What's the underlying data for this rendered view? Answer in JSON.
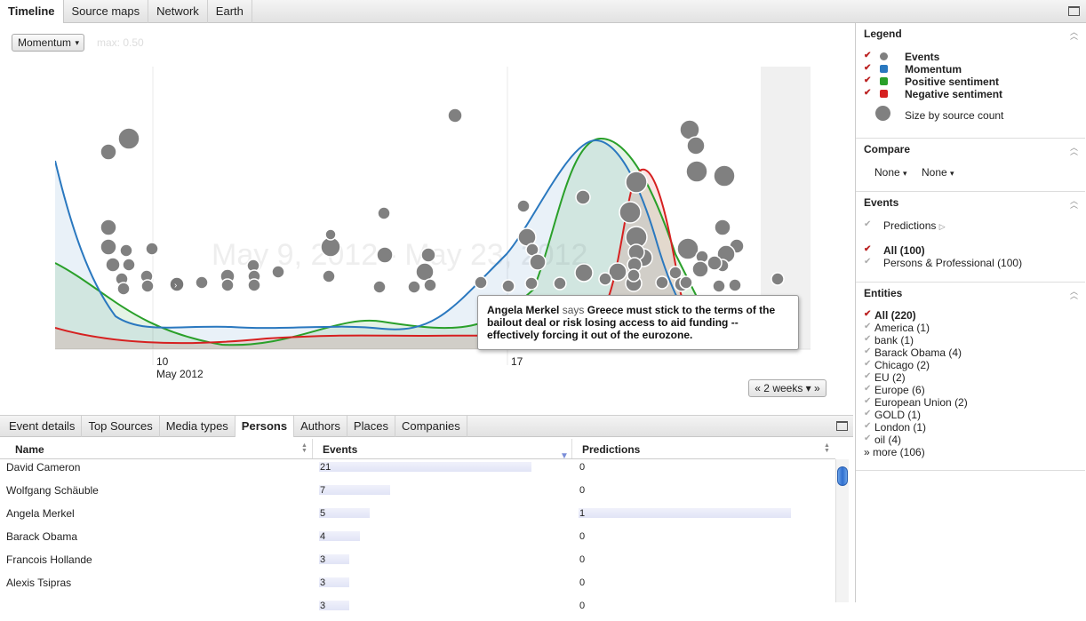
{
  "top_tabs": [
    "Timeline",
    "Source maps",
    "Network",
    "Earth"
  ],
  "chart_controls": {
    "metric_select": "Momentum",
    "max_label": "max: 0.50",
    "watermark": "May 9, 2012 - May 23, 2012",
    "week_button": "« 2 weeks ▾ »"
  },
  "colors": {
    "events": "#808080",
    "momentum": "#2a78bf",
    "positive": "#2aa02a",
    "negative": "#d62020"
  },
  "chart_data": {
    "type": "line",
    "x_tick_labels": [
      {
        "day": "10",
        "month": "May 2012"
      },
      {
        "day": "17",
        "month": ""
      }
    ],
    "series": [
      {
        "name": "Momentum",
        "color": "#2a78bf"
      },
      {
        "name": "Positive sentiment",
        "color": "#2aa02a"
      },
      {
        "name": "Negative sentiment",
        "color": "#d62020"
      },
      {
        "name": "Events",
        "color": "#808080"
      }
    ]
  },
  "tooltip": {
    "person": "Angela Merkel",
    "verb": "says",
    "text": "Greece must stick to the terms of the bailout deal or risk losing access to aid funding -- effectively forcing it out of the eurozone."
  },
  "bottom_tabs": [
    "Event details",
    "Top Sources",
    "Media types",
    "Persons",
    "Authors",
    "Places",
    "Companies"
  ],
  "table": {
    "headers": {
      "name": "Name",
      "events": "Events",
      "predictions": "Predictions"
    },
    "rows": [
      {
        "name": "David Cameron",
        "events": 21,
        "predictions": 0
      },
      {
        "name": "Wolfgang Schäuble",
        "events": 7,
        "predictions": 0
      },
      {
        "name": "Angela Merkel",
        "events": 5,
        "predictions": 1
      },
      {
        "name": "Barack Obama",
        "events": 4,
        "predictions": 0
      },
      {
        "name": "Francois Hollande",
        "events": 3,
        "predictions": 0
      },
      {
        "name": "Alexis Tsipras",
        "events": 3,
        "predictions": 0
      },
      {
        "name": "",
        "events": 3,
        "predictions": 0
      }
    ]
  },
  "sidebar": {
    "legend": {
      "title": "Legend",
      "items": [
        {
          "label": "Events",
          "color": "#808080",
          "shape": "circle"
        },
        {
          "label": "Momentum",
          "color": "#2a78bf",
          "shape": "square"
        },
        {
          "label": "Positive sentiment",
          "color": "#2aa02a",
          "shape": "square"
        },
        {
          "label": "Negative sentiment",
          "color": "#d62020",
          "shape": "square"
        }
      ],
      "size_label": "Size by source count"
    },
    "compare": {
      "title": "Compare",
      "first": "None",
      "second": "None"
    },
    "events": {
      "title": "Events",
      "predictions": "Predictions",
      "all": "All (100)",
      "persons": "Persons & Professional (100)"
    },
    "entities": {
      "title": "Entities",
      "all": "All (220)",
      "items": [
        "America (1)",
        "bank (1)",
        "Barack Obama (4)",
        "Chicago (2)",
        "EU (2)",
        "Europe (6)",
        "European Union (2)",
        "GOLD (1)",
        "London (1)",
        "oil (4)"
      ],
      "more": "» more (106)"
    }
  }
}
